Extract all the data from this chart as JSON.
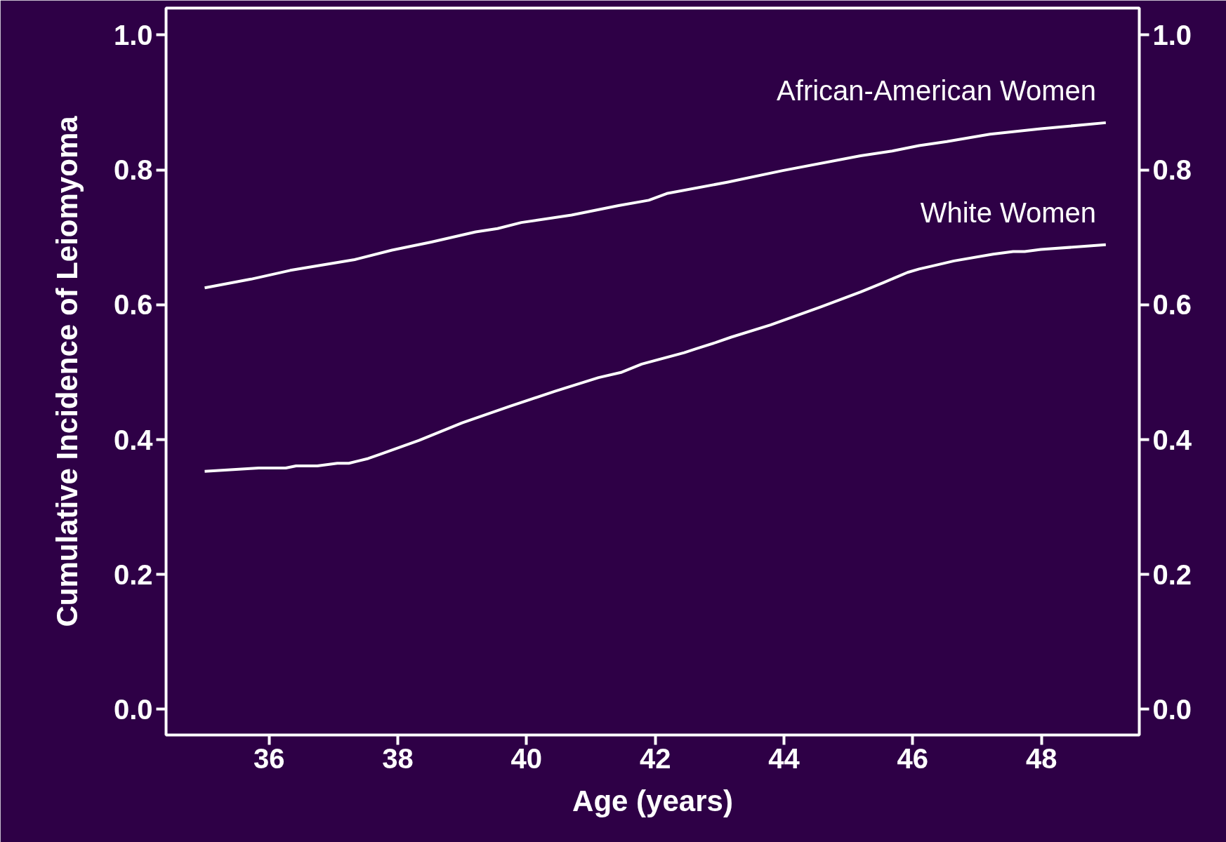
{
  "chart_data": {
    "type": "line",
    "xlabel": "Age (years)",
    "ylabel": "Cumulative Incidence of Leiomyoma",
    "xlim": [
      34.4,
      49.52
    ],
    "xticks": [
      36,
      38,
      40,
      42,
      44,
      46,
      48
    ],
    "ylim": [
      -0.038,
      1.04
    ],
    "yticks": [
      {
        "value": 0,
        "label": "0.0"
      },
      {
        "value": 0.2,
        "label": "0.2"
      },
      {
        "value": 0.4,
        "label": "0.4"
      },
      {
        "value": 0.6,
        "label": "0.6"
      },
      {
        "value": 0.8,
        "label": "0.8"
      },
      {
        "value": 1,
        "label": "1.0"
      }
    ],
    "y2lim": [
      -0.038,
      1.04
    ],
    "y2ticks": [
      {
        "value": 0,
        "label": "0.0"
      },
      {
        "value": 0.2,
        "label": "0.2"
      },
      {
        "value": 0.4,
        "label": "0.4"
      },
      {
        "value": 0.6,
        "label": "0.6"
      },
      {
        "value": 0.8,
        "label": "0.8"
      },
      {
        "value": 1,
        "label": "1.0"
      }
    ],
    "grid": false,
    "line_style": "solid",
    "marker": "none",
    "series": [
      {
        "name": "African-American Women",
        "color": "#ffffff",
        "x": [
          35.0,
          35.72,
          36.33,
          37.33,
          37.91,
          38.52,
          39.21,
          39.55,
          39.92,
          40.7,
          41.43,
          41.9,
          42.18,
          43.13,
          43.98,
          45.19,
          45.68,
          46.1,
          46.53,
          47.2,
          47.99,
          49.0
        ],
        "values": [
          0.625,
          0.638,
          0.651,
          0.667,
          0.681,
          0.693,
          0.708,
          0.713,
          0.722,
          0.733,
          0.747,
          0.755,
          0.765,
          0.782,
          0.799,
          0.821,
          0.828,
          0.836,
          0.842,
          0.853,
          0.861,
          0.87
        ]
      },
      {
        "name": "White Women",
        "color": "#ffffff",
        "x": [
          35.0,
          35.84,
          36.26,
          36.42,
          36.75,
          37.06,
          37.24,
          37.54,
          37.72,
          38.33,
          39.0,
          39.73,
          40.45,
          41.12,
          41.48,
          41.79,
          42.45,
          42.64,
          42.94,
          43.18,
          43.79,
          44.58,
          45.19,
          45.55,
          45.92,
          46.1,
          46.28,
          46.64,
          47.25,
          47.56,
          47.74,
          47.99,
          49.0
        ],
        "values": [
          0.353,
          0.358,
          0.358,
          0.361,
          0.361,
          0.365,
          0.365,
          0.372,
          0.378,
          0.399,
          0.425,
          0.449,
          0.472,
          0.492,
          0.5,
          0.512,
          0.529,
          0.535,
          0.544,
          0.552,
          0.57,
          0.597,
          0.619,
          0.633,
          0.648,
          0.653,
          0.657,
          0.665,
          0.675,
          0.679,
          0.679,
          0.682,
          0.689
        ]
      }
    ]
  }
}
